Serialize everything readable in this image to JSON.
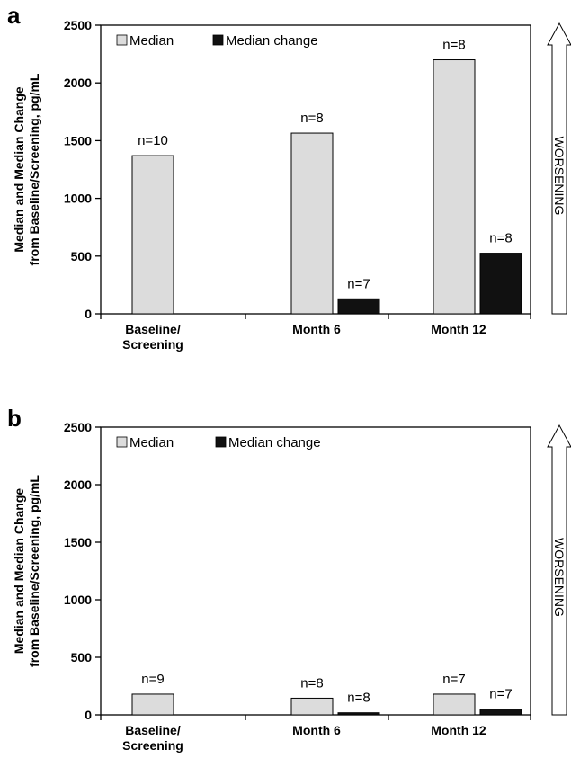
{
  "chart_data": [
    {
      "panel": "a",
      "type": "bar",
      "categories": [
        [
          "Baseline/",
          "Screening"
        ],
        [
          "Month 6"
        ],
        [
          "Month 12"
        ]
      ],
      "ylabel_lines": [
        "Median and Median Change",
        "from Baseline/Screening, pg/mL"
      ],
      "ylim": [
        0,
        2500
      ],
      "yticks": [
        0,
        500,
        1000,
        1500,
        2000,
        2500
      ],
      "legend": [
        "Median",
        "Median change"
      ],
      "series": [
        {
          "name": "Median",
          "color": "#dcdcdc",
          "values": [
            1370,
            1565,
            2200
          ],
          "labels": [
            "n=10",
            "n=8",
            "n=8"
          ]
        },
        {
          "name": "Median change",
          "color": "#111111",
          "values": [
            null,
            130,
            525
          ],
          "labels": [
            "",
            "n=7",
            "n=8"
          ]
        }
      ],
      "arrow_label": "WORSENING"
    },
    {
      "panel": "b",
      "type": "bar",
      "categories": [
        [
          "Baseline/",
          "Screening"
        ],
        [
          "Month 6"
        ],
        [
          "Month 12"
        ]
      ],
      "ylabel_lines": [
        "Median and Median Change",
        "from Baseline/Screening, pg/mL"
      ],
      "ylim": [
        0,
        2500
      ],
      "yticks": [
        0,
        500,
        1000,
        1500,
        2000,
        2500
      ],
      "legend": [
        "Median",
        "Median change"
      ],
      "series": [
        {
          "name": "Median",
          "color": "#dcdcdc",
          "values": [
            180,
            145,
            180
          ],
          "labels": [
            "n=9",
            "n=8",
            "n=7"
          ]
        },
        {
          "name": "Median change",
          "color": "#111111",
          "values": [
            null,
            18,
            50
          ],
          "labels": [
            "",
            "n=8",
            "n=7"
          ]
        }
      ],
      "arrow_label": "WORSENING"
    }
  ]
}
